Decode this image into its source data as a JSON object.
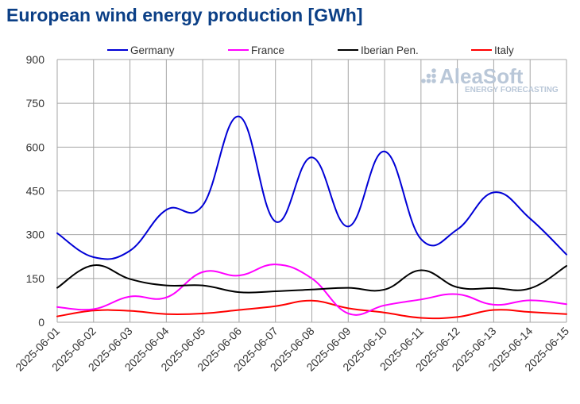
{
  "chart_data": {
    "type": "line",
    "title": "European wind energy production [GWh]",
    "xlabel": "",
    "ylabel": "",
    "ylim": [
      0,
      900
    ],
    "yticks": [
      0,
      150,
      300,
      450,
      600,
      750,
      900
    ],
    "grid": true,
    "legend_position": "top",
    "categories": [
      "2025-06-01",
      "2025-06-02",
      "2025-06-03",
      "2025-06-04",
      "2025-06-05",
      "2025-06-06",
      "2025-06-07",
      "2025-06-08",
      "2025-06-09",
      "2025-06-10",
      "2025-06-11",
      "2025-06-12",
      "2025-06-13",
      "2025-06-14",
      "2025-06-15"
    ],
    "series": [
      {
        "name": "Germany",
        "color": "#0000d6",
        "values": [
          305,
          223,
          245,
          385,
          400,
          705,
          345,
          565,
          328,
          585,
          285,
          318,
          445,
          355,
          232
        ]
      },
      {
        "name": "France",
        "color": "#ff00ff",
        "values": [
          52,
          45,
          88,
          85,
          172,
          160,
          198,
          150,
          30,
          58,
          78,
          96,
          60,
          75,
          62
        ]
      },
      {
        "name": "Iberian Pen.",
        "color": "#000000",
        "values": [
          118,
          195,
          148,
          126,
          126,
          103,
          106,
          112,
          118,
          112,
          178,
          120,
          117,
          116,
          193
        ]
      },
      {
        "name": "Italy",
        "color": "#ff0000",
        "values": [
          20,
          40,
          39,
          28,
          30,
          42,
          55,
          74,
          48,
          33,
          15,
          18,
          42,
          35,
          28
        ]
      }
    ]
  },
  "logo": {
    "name": "AleaSoft",
    "tagline": "ENERGY FORECASTING"
  }
}
